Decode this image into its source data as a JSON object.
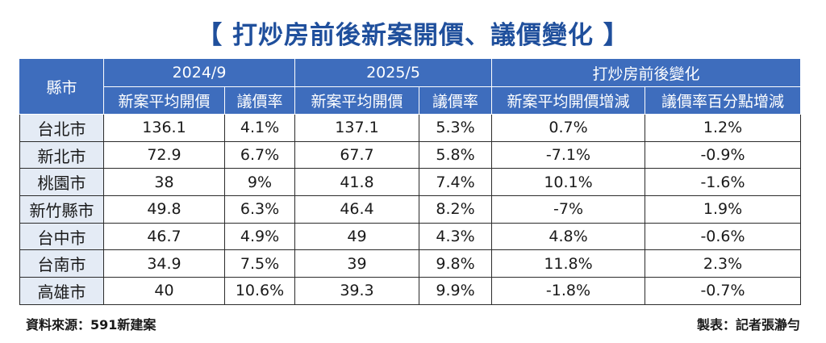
{
  "title": "【 打炒房前後新案開價、議價變化 】",
  "header": {
    "city": "縣市",
    "groups": [
      "2024/9",
      "2025/5",
      "打炒房前後變化"
    ],
    "columns": [
      "新案平均開價",
      "議價率",
      "新案平均開價",
      "議價率",
      "新案平均開價增減",
      "議價率百分點增減"
    ]
  },
  "rows": [
    {
      "city": "台北市",
      "cells": [
        "136.1",
        "4.1%",
        "137.1",
        "5.3%",
        "0.7%",
        "1.2%"
      ]
    },
    {
      "city": "新北市",
      "cells": [
        "72.9",
        "6.7%",
        "67.7",
        "5.8%",
        "-7.1%",
        "-0.9%"
      ]
    },
    {
      "city": "桃園市",
      "cells": [
        "38",
        "9%",
        "41.8",
        "7.4%",
        "10.1%",
        "-1.6%"
      ]
    },
    {
      "city": "新竹縣市",
      "cells": [
        "49.8",
        "6.3%",
        "46.4",
        "8.2%",
        "-7%",
        "1.9%"
      ]
    },
    {
      "city": "台中市",
      "cells": [
        "46.7",
        "4.9%",
        "49",
        "4.3%",
        "4.8%",
        "-0.6%"
      ]
    },
    {
      "city": "台南市",
      "cells": [
        "34.9",
        "7.5%",
        "39",
        "9.8%",
        "11.8%",
        "2.3%"
      ]
    },
    {
      "city": "高雄市",
      "cells": [
        "40",
        "10.6%",
        "39.3",
        "9.9%",
        "-1.8%",
        "-0.7%"
      ]
    }
  ],
  "footer": {
    "source": "資料來源：591新建案",
    "credit": "製表：記者張瀞勻"
  },
  "colors": {
    "title": "#1f4f9c",
    "header_bg": "#3e6dbd",
    "city_bg": "#e4ebf5"
  }
}
